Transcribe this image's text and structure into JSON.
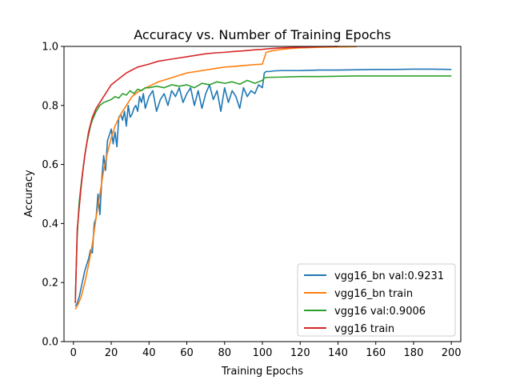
{
  "chart_data": {
    "type": "line",
    "title": "Accuracy vs. Number of Training Epochs",
    "xlabel": "Training Epochs",
    "ylabel": "Accuracy",
    "xlim": [
      -5,
      205
    ],
    "ylim": [
      0.0,
      1.0
    ],
    "xticks": [
      0,
      20,
      40,
      60,
      80,
      100,
      120,
      140,
      160,
      180,
      200
    ],
    "yticks": [
      0.0,
      0.2,
      0.4,
      0.6,
      0.8,
      1.0
    ],
    "xtick_labels": [
      "0",
      "20",
      "40",
      "60",
      "80",
      "100",
      "120",
      "140",
      "160",
      "180",
      "200"
    ],
    "ytick_labels": [
      "0.0",
      "0.2",
      "0.4",
      "0.6",
      "0.8",
      "1.0"
    ],
    "grid": false,
    "legend_position": "lower-right",
    "series": [
      {
        "name": "vgg16_bn val:0.9231",
        "color": "#1f77b4",
        "x": [
          1,
          2,
          3,
          4,
          5,
          6,
          7,
          8,
          9,
          10,
          11,
          12,
          13,
          14,
          15,
          16,
          17,
          18,
          19,
          20,
          21,
          22,
          23,
          24,
          25,
          26,
          27,
          28,
          29,
          30,
          31,
          32,
          33,
          34,
          35,
          36,
          37,
          38,
          40,
          42,
          44,
          46,
          48,
          50,
          52,
          54,
          56,
          58,
          60,
          62,
          64,
          66,
          68,
          70,
          72,
          74,
          76,
          78,
          80,
          82,
          84,
          86,
          88,
          90,
          92,
          94,
          96,
          98,
          100,
          101,
          102,
          104,
          106,
          110,
          120,
          130,
          140,
          150,
          160,
          170,
          180,
          190,
          200
        ],
        "y": [
          0.12,
          0.13,
          0.15,
          0.18,
          0.21,
          0.24,
          0.26,
          0.28,
          0.31,
          0.3,
          0.4,
          0.42,
          0.5,
          0.43,
          0.55,
          0.63,
          0.58,
          0.68,
          0.7,
          0.72,
          0.67,
          0.71,
          0.66,
          0.76,
          0.77,
          0.75,
          0.78,
          0.73,
          0.8,
          0.76,
          0.77,
          0.79,
          0.8,
          0.78,
          0.83,
          0.81,
          0.84,
          0.79,
          0.83,
          0.85,
          0.78,
          0.82,
          0.84,
          0.8,
          0.85,
          0.83,
          0.86,
          0.81,
          0.84,
          0.86,
          0.8,
          0.85,
          0.79,
          0.84,
          0.87,
          0.82,
          0.85,
          0.78,
          0.86,
          0.81,
          0.85,
          0.83,
          0.79,
          0.86,
          0.83,
          0.85,
          0.84,
          0.87,
          0.86,
          0.91,
          0.915,
          0.915,
          0.917,
          0.918,
          0.918,
          0.92,
          0.92,
          0.921,
          0.922,
          0.922,
          0.923,
          0.923,
          0.922
        ]
      },
      {
        "name": "vgg16_bn train",
        "color": "#ff7f0e",
        "x": [
          1,
          2,
          4,
          6,
          8,
          10,
          12,
          14,
          16,
          18,
          20,
          22,
          25,
          28,
          31,
          34,
          37,
          40,
          45,
          50,
          55,
          60,
          65,
          70,
          75,
          80,
          85,
          90,
          95,
          100,
          101,
          102,
          105,
          110,
          115,
          120,
          130,
          140,
          150
        ],
        "y": [
          0.11,
          0.12,
          0.15,
          0.2,
          0.26,
          0.33,
          0.42,
          0.5,
          0.58,
          0.64,
          0.69,
          0.73,
          0.77,
          0.8,
          0.83,
          0.845,
          0.855,
          0.865,
          0.88,
          0.89,
          0.9,
          0.91,
          0.915,
          0.92,
          0.925,
          0.93,
          0.932,
          0.935,
          0.938,
          0.94,
          0.96,
          0.98,
          0.985,
          0.99,
          0.993,
          0.995,
          0.997,
          0.998,
          0.999
        ]
      },
      {
        "name": "vgg16 val:0.9006",
        "color": "#2ca02c",
        "x": [
          1,
          2,
          3,
          4,
          5,
          6,
          7,
          8,
          9,
          10,
          12,
          14,
          16,
          18,
          20,
          22,
          24,
          26,
          28,
          30,
          32,
          34,
          36,
          38,
          40,
          44,
          48,
          52,
          56,
          60,
          64,
          68,
          72,
          76,
          80,
          84,
          88,
          92,
          96,
          100,
          101,
          102,
          110,
          120,
          130,
          140,
          150,
          160,
          170,
          180,
          190,
          200
        ],
        "y": [
          0.15,
          0.36,
          0.47,
          0.53,
          0.58,
          0.63,
          0.67,
          0.7,
          0.73,
          0.75,
          0.78,
          0.8,
          0.81,
          0.815,
          0.82,
          0.83,
          0.825,
          0.84,
          0.835,
          0.85,
          0.84,
          0.855,
          0.85,
          0.86,
          0.86,
          0.865,
          0.86,
          0.87,
          0.865,
          0.87,
          0.86,
          0.875,
          0.87,
          0.88,
          0.875,
          0.88,
          0.872,
          0.885,
          0.875,
          0.885,
          0.893,
          0.895,
          0.896,
          0.898,
          0.898,
          0.899,
          0.9,
          0.9,
          0.9,
          0.9,
          0.9,
          0.9
        ]
      },
      {
        "name": "vgg16 train",
        "color": "#d62728",
        "x": [
          1,
          2,
          3,
          4,
          5,
          6,
          7,
          8,
          10,
          12,
          14,
          16,
          18,
          20,
          22,
          25,
          28,
          31,
          34,
          37,
          40,
          45,
          50,
          55,
          60,
          65,
          70,
          75,
          80,
          85,
          90,
          95,
          100,
          105,
          110,
          120,
          130,
          140
        ],
        "y": [
          0.13,
          0.38,
          0.45,
          0.52,
          0.58,
          0.63,
          0.67,
          0.71,
          0.76,
          0.79,
          0.81,
          0.83,
          0.85,
          0.87,
          0.88,
          0.895,
          0.91,
          0.92,
          0.93,
          0.935,
          0.94,
          0.95,
          0.955,
          0.96,
          0.965,
          0.97,
          0.975,
          0.978,
          0.98,
          0.983,
          0.985,
          0.988,
          0.99,
          0.993,
          0.995,
          0.997,
          0.999,
          1.0
        ]
      }
    ]
  }
}
